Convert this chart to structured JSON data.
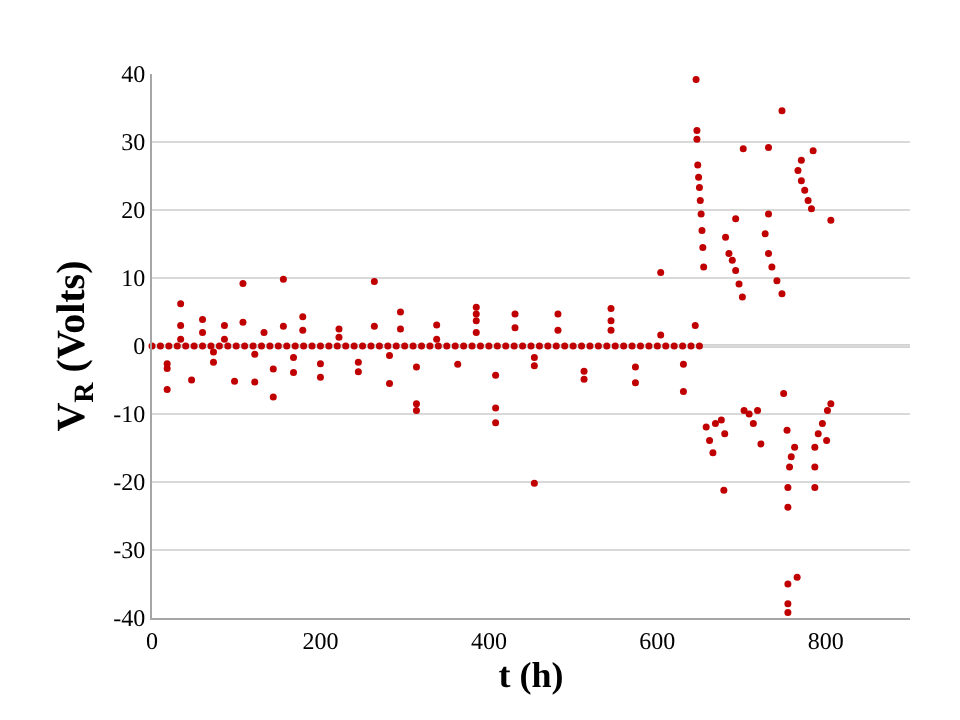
{
  "chart_data": {
    "type": "scatter",
    "xlabel": "t (h)",
    "ylabel": "V$_{R}$ (Volts)",
    "xlim": [
      0,
      900
    ],
    "xticks": [
      0,
      200,
      400,
      600,
      800
    ],
    "ylim": [
      -40,
      40
    ],
    "yticks": [
      -40,
      -30,
      -20,
      -10,
      0,
      10,
      20,
      30,
      40
    ],
    "grid": "y",
    "marker": "circle",
    "ref_lines": [
      {
        "axis": "y",
        "value": 0,
        "color": "#a6a6a6"
      }
    ],
    "series": [
      {
        "color": "#c00000",
        "x": [
          0,
          10,
          20,
          30,
          40,
          50,
          60,
          70,
          80,
          90,
          100,
          110,
          120,
          130,
          140,
          150,
          160,
          170,
          180,
          190,
          200,
          210,
          220,
          230,
          240,
          250,
          260,
          270,
          280,
          290,
          300,
          310,
          320,
          330,
          340,
          350,
          360,
          370,
          380,
          390,
          400,
          410,
          420,
          430,
          440,
          450,
          460,
          470,
          480,
          490,
          500,
          510,
          520,
          530,
          540,
          550,
          560,
          570,
          580,
          590,
          600,
          610,
          620,
          630,
          640,
          650,
          18,
          18,
          18,
          34,
          34,
          34,
          47,
          60,
          60,
          73,
          73,
          86,
          86,
          98,
          108,
          108,
          122,
          122,
          133,
          144,
          144,
          156,
          156,
          168,
          168,
          179,
          179,
          200,
          200,
          222,
          222,
          245,
          245,
          264,
          264,
          282,
          282,
          295,
          295,
          314,
          314,
          314,
          338,
          338,
          363,
          385,
          385,
          385,
          385,
          408,
          408,
          408,
          431,
          431,
          454,
          454,
          454,
          482,
          482,
          513,
          513,
          545,
          545,
          545,
          574,
          574,
          604,
          604,
          631,
          631,
          645,
          646,
          647,
          647,
          648,
          649,
          650,
          651,
          652,
          653,
          654,
          655,
          681,
          685,
          689,
          693,
          697,
          701,
          693,
          702,
          732,
          728,
          732,
          736,
          742,
          748,
          732,
          748,
          767,
          771,
          775,
          779,
          783,
          771,
          785,
          806,
          658,
          662,
          666,
          669,
          676,
          680,
          679,
          703,
          709,
          714,
          719,
          723,
          750,
          754,
          757,
          759,
          763,
          755,
          755,
          755,
          766,
          755,
          755,
          787,
          787,
          787,
          791,
          796,
          802,
          806,
          801
        ],
        "values": [
          0,
          0,
          0,
          0,
          0,
          0,
          0,
          0,
          0,
          0,
          0,
          0,
          0,
          0,
          0,
          0,
          0,
          0,
          0,
          0,
          0,
          0,
          0,
          0,
          0,
          0,
          0,
          0,
          0,
          0,
          0,
          0,
          0,
          0,
          0,
          0,
          0,
          0,
          0,
          0,
          0,
          0,
          0,
          0,
          0,
          0,
          0,
          0,
          0,
          0,
          0,
          0,
          0,
          0,
          0,
          0,
          0,
          0,
          0,
          0,
          0,
          0,
          0,
          0,
          0,
          0,
          -2.6,
          -3.3,
          -6.4,
          6.2,
          3.0,
          1,
          -5,
          3.9,
          2,
          -2.4,
          -0.9,
          3,
          1,
          -5.2,
          9.2,
          3.5,
          -5.3,
          -1.2,
          2,
          -7.5,
          -3.4,
          9.8,
          2.9,
          -3.9,
          -1.7,
          4.3,
          2.3,
          -2.6,
          -4.6,
          2.5,
          1.3,
          -2.4,
          -3.8,
          9.5,
          2.9,
          -5.5,
          -1.4,
          5,
          2.5,
          -3.1,
          -8.5,
          -9.5,
          3.1,
          1,
          -2.7,
          5.7,
          4.7,
          3.7,
          2,
          -4.3,
          -9.1,
          -11.3,
          4.7,
          2.7,
          -1.7,
          -2.9,
          -20.2,
          4.7,
          2.3,
          -3.7,
          -4.9,
          5.5,
          3.7,
          2.3,
          -3.1,
          -5.4,
          10.8,
          1.6,
          -2.7,
          -6.7,
          3.0,
          39.2,
          31.7,
          30.4,
          26.6,
          24.8,
          23.3,
          21.4,
          19.4,
          17,
          14.5,
          11.6,
          16,
          13.6,
          12.6,
          11.1,
          9.1,
          7.2,
          18.7,
          29,
          19.4,
          16.5,
          13.6,
          11.6,
          9.6,
          7.7,
          29.2,
          34.6,
          25.8,
          24.3,
          22.9,
          21.4,
          20.2,
          27.3,
          28.7,
          18.5,
          -11.9,
          -13.9,
          -15.7,
          -11.4,
          -10.9,
          -12.9,
          -21.2,
          -9.5,
          -10,
          -11.4,
          -9.5,
          -14.4,
          -7,
          -12.4,
          -17.8,
          -16.3,
          -14.9,
          -20.8,
          -23.7,
          -35,
          -34,
          -37.9,
          -39.2,
          -20.8,
          -17.8,
          -14.9,
          -12.9,
          -11.4,
          -9.5,
          -8.5,
          -13.9
        ]
      }
    ]
  }
}
